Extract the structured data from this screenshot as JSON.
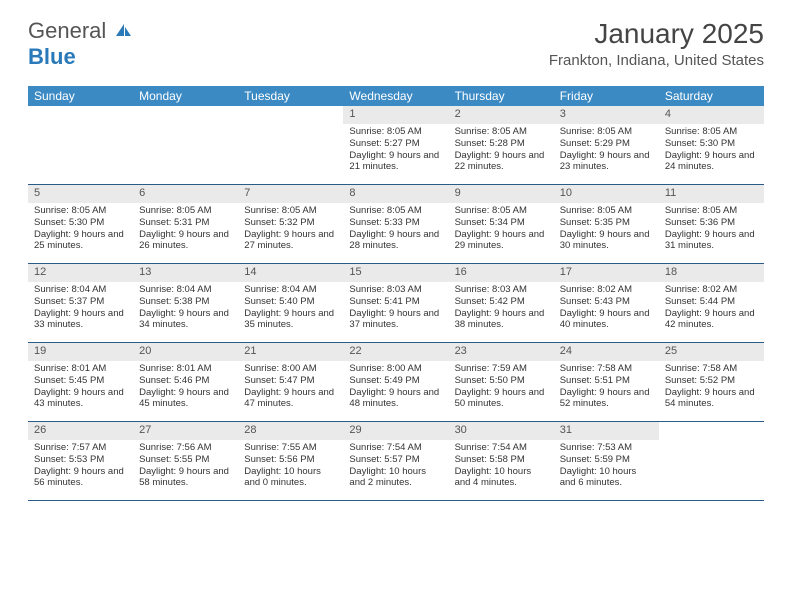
{
  "logo": {
    "text1": "General",
    "text2": "Blue"
  },
  "title": {
    "month": "January 2025",
    "location": "Frankton, Indiana, United States"
  },
  "colors": {
    "header_bg": "#3b8ac4",
    "daynum_bg": "#eaeaea",
    "border": "#2a5c8a"
  },
  "dayNames": [
    "Sunday",
    "Monday",
    "Tuesday",
    "Wednesday",
    "Thursday",
    "Friday",
    "Saturday"
  ],
  "weeks": [
    [
      null,
      null,
      null,
      {
        "n": "1",
        "sr": "8:05 AM",
        "ss": "5:27 PM",
        "dl": "9 hours and 21 minutes."
      },
      {
        "n": "2",
        "sr": "8:05 AM",
        "ss": "5:28 PM",
        "dl": "9 hours and 22 minutes."
      },
      {
        "n": "3",
        "sr": "8:05 AM",
        "ss": "5:29 PM",
        "dl": "9 hours and 23 minutes."
      },
      {
        "n": "4",
        "sr": "8:05 AM",
        "ss": "5:30 PM",
        "dl": "9 hours and 24 minutes."
      }
    ],
    [
      {
        "n": "5",
        "sr": "8:05 AM",
        "ss": "5:30 PM",
        "dl": "9 hours and 25 minutes."
      },
      {
        "n": "6",
        "sr": "8:05 AM",
        "ss": "5:31 PM",
        "dl": "9 hours and 26 minutes."
      },
      {
        "n": "7",
        "sr": "8:05 AM",
        "ss": "5:32 PM",
        "dl": "9 hours and 27 minutes."
      },
      {
        "n": "8",
        "sr": "8:05 AM",
        "ss": "5:33 PM",
        "dl": "9 hours and 28 minutes."
      },
      {
        "n": "9",
        "sr": "8:05 AM",
        "ss": "5:34 PM",
        "dl": "9 hours and 29 minutes."
      },
      {
        "n": "10",
        "sr": "8:05 AM",
        "ss": "5:35 PM",
        "dl": "9 hours and 30 minutes."
      },
      {
        "n": "11",
        "sr": "8:05 AM",
        "ss": "5:36 PM",
        "dl": "9 hours and 31 minutes."
      }
    ],
    [
      {
        "n": "12",
        "sr": "8:04 AM",
        "ss": "5:37 PM",
        "dl": "9 hours and 33 minutes."
      },
      {
        "n": "13",
        "sr": "8:04 AM",
        "ss": "5:38 PM",
        "dl": "9 hours and 34 minutes."
      },
      {
        "n": "14",
        "sr": "8:04 AM",
        "ss": "5:40 PM",
        "dl": "9 hours and 35 minutes."
      },
      {
        "n": "15",
        "sr": "8:03 AM",
        "ss": "5:41 PM",
        "dl": "9 hours and 37 minutes."
      },
      {
        "n": "16",
        "sr": "8:03 AM",
        "ss": "5:42 PM",
        "dl": "9 hours and 38 minutes."
      },
      {
        "n": "17",
        "sr": "8:02 AM",
        "ss": "5:43 PM",
        "dl": "9 hours and 40 minutes."
      },
      {
        "n": "18",
        "sr": "8:02 AM",
        "ss": "5:44 PM",
        "dl": "9 hours and 42 minutes."
      }
    ],
    [
      {
        "n": "19",
        "sr": "8:01 AM",
        "ss": "5:45 PM",
        "dl": "9 hours and 43 minutes."
      },
      {
        "n": "20",
        "sr": "8:01 AM",
        "ss": "5:46 PM",
        "dl": "9 hours and 45 minutes."
      },
      {
        "n": "21",
        "sr": "8:00 AM",
        "ss": "5:47 PM",
        "dl": "9 hours and 47 minutes."
      },
      {
        "n": "22",
        "sr": "8:00 AM",
        "ss": "5:49 PM",
        "dl": "9 hours and 48 minutes."
      },
      {
        "n": "23",
        "sr": "7:59 AM",
        "ss": "5:50 PM",
        "dl": "9 hours and 50 minutes."
      },
      {
        "n": "24",
        "sr": "7:58 AM",
        "ss": "5:51 PM",
        "dl": "9 hours and 52 minutes."
      },
      {
        "n": "25",
        "sr": "7:58 AM",
        "ss": "5:52 PM",
        "dl": "9 hours and 54 minutes."
      }
    ],
    [
      {
        "n": "26",
        "sr": "7:57 AM",
        "ss": "5:53 PM",
        "dl": "9 hours and 56 minutes."
      },
      {
        "n": "27",
        "sr": "7:56 AM",
        "ss": "5:55 PM",
        "dl": "9 hours and 58 minutes."
      },
      {
        "n": "28",
        "sr": "7:55 AM",
        "ss": "5:56 PM",
        "dl": "10 hours and 0 minutes."
      },
      {
        "n": "29",
        "sr": "7:54 AM",
        "ss": "5:57 PM",
        "dl": "10 hours and 2 minutes."
      },
      {
        "n": "30",
        "sr": "7:54 AM",
        "ss": "5:58 PM",
        "dl": "10 hours and 4 minutes."
      },
      {
        "n": "31",
        "sr": "7:53 AM",
        "ss": "5:59 PM",
        "dl": "10 hours and 6 minutes."
      },
      null
    ]
  ],
  "labels": {
    "sunrise": "Sunrise:",
    "sunset": "Sunset:",
    "daylight": "Daylight:"
  }
}
